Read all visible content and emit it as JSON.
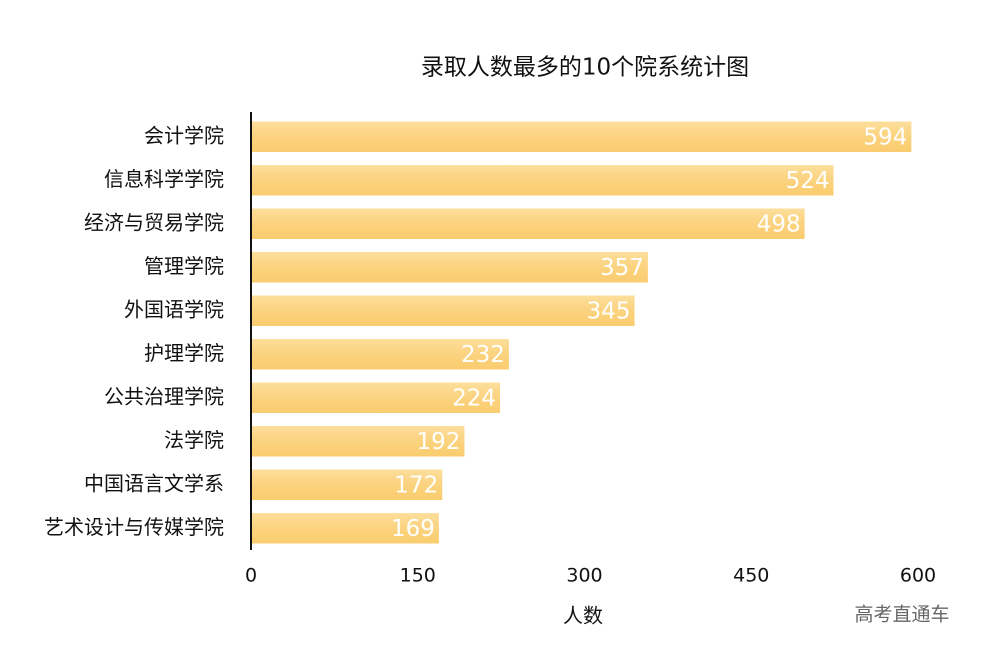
{
  "chart_data": {
    "type": "bar",
    "orientation": "horizontal",
    "title": "录取人数最多的10个院系统计图",
    "categories": [
      "会计学院",
      "信息科学学院",
      "经济与贸易学院",
      "管理学院",
      "外国语学院",
      "护理学院",
      "公共治理学院",
      "法学院",
      "中国语言文学系",
      "艺术设计与传媒学院"
    ],
    "values": [
      594,
      524,
      498,
      357,
      345,
      232,
      224,
      192,
      172,
      169
    ],
    "color": "#fcd47c",
    "xlim": [
      0,
      600
    ],
    "xticks": [
      0,
      150,
      300,
      450,
      600
    ],
    "x_label": "人数",
    "grid": false
  },
  "watermark": "高考直通车"
}
